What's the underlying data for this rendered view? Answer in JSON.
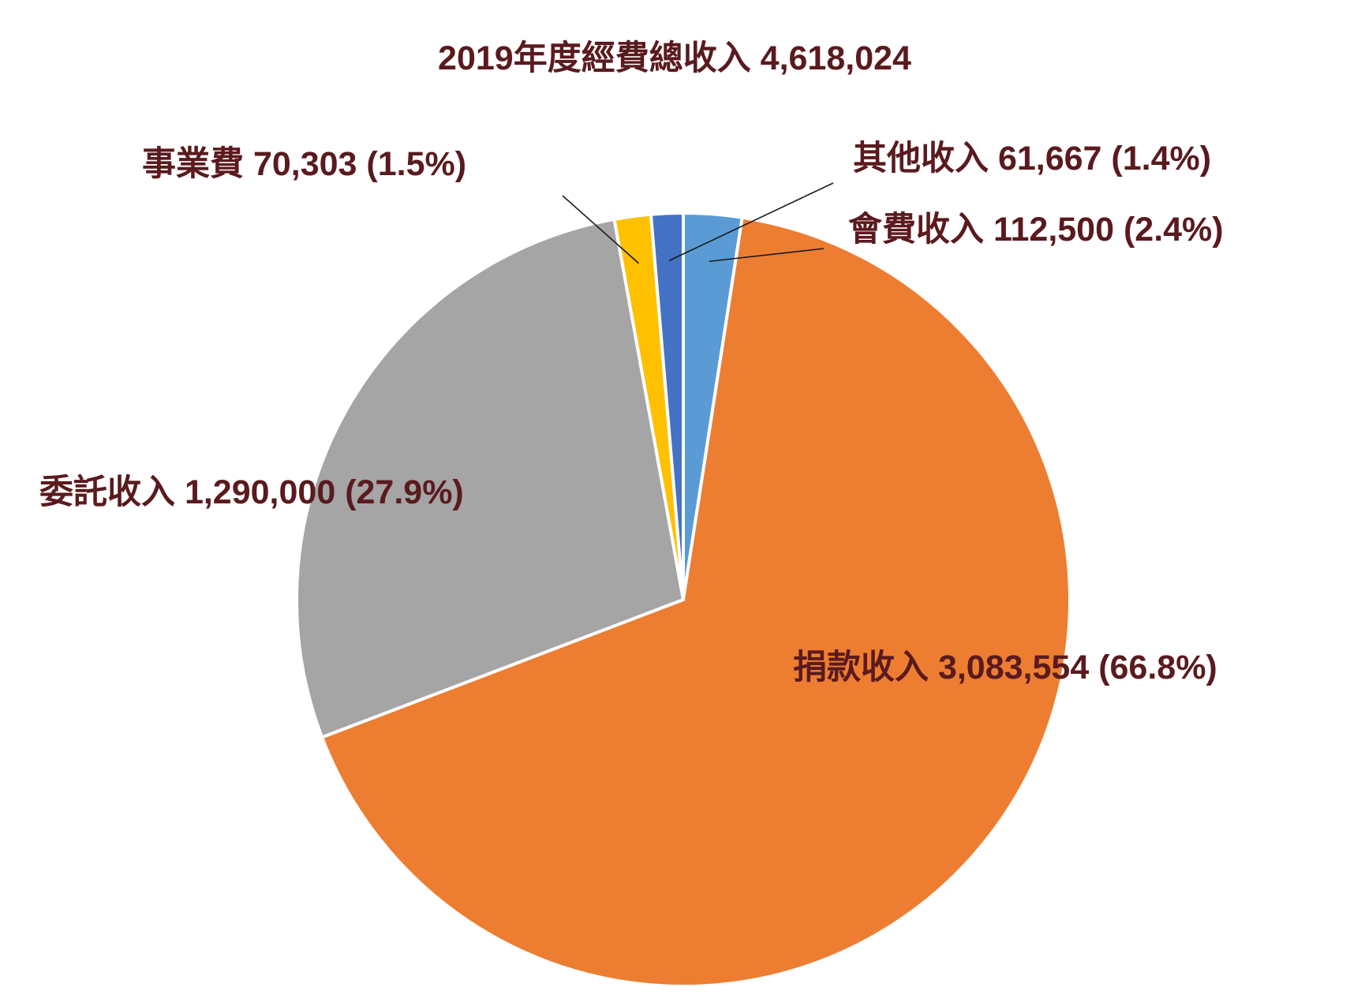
{
  "chart_data": {
    "type": "pie",
    "title": "2019年度經費總收入  4,618,024",
    "total": 4618024,
    "slices": [
      {
        "name": "會費收入",
        "value": 112500,
        "percent": 2.4,
        "label": "會費收入  112,500 (2.4%)",
        "color": "#5b9bd5"
      },
      {
        "name": "捐款收入",
        "value": 3083554,
        "percent": 66.8,
        "label": "捐款收入  3,083,554 (66.8%)",
        "color": "#ed7d31"
      },
      {
        "name": "委託收入",
        "value": 1290000,
        "percent": 27.9,
        "label": "委託收入  1,290,000 (27.9%)",
        "color": "#a5a5a5"
      },
      {
        "name": "事業費",
        "value": 70303,
        "percent": 1.5,
        "label": "事業費   70,303 (1.5%)",
        "color": "#ffc000"
      },
      {
        "name": "其他收入",
        "value": 61667,
        "percent": 1.4,
        "label": "其他收入  61,667 (1.4%)",
        "color": "#4472c4"
      }
    ],
    "start_angle_deg": 0,
    "direction": "clockwise",
    "legend": "none",
    "label_color": "#5a1a1e"
  }
}
